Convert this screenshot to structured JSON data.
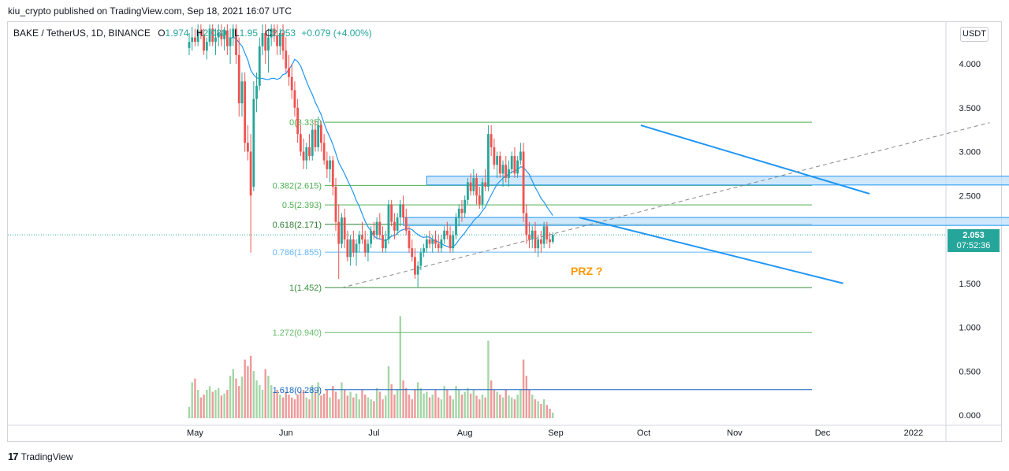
{
  "header": {
    "publisher_line": "kiu_crypto published on TradingView.com, Sep 18, 2021 16:07 UTC"
  },
  "legend": {
    "symbol": "BAKE / TetherUS, 1D, BINANCE",
    "o_label": "O",
    "o_value": "1.974",
    "h_label": "H",
    "h_value": "2.080",
    "l_label": "L",
    "l_value": "1.95",
    "c_label": "C",
    "c_value": "2.053",
    "change": "+0.079 (+4.00%)"
  },
  "currency_button": "USDT",
  "last_price": {
    "value": "2.053",
    "countdown": "07:52:36"
  },
  "annotation": {
    "text": "PRZ ?"
  },
  "footer": {
    "brand": "TradingView"
  },
  "colors": {
    "up": "#26a69a",
    "down": "#ef5350",
    "up_volume": "#a5d6a7",
    "down_volume": "#ef9a9a",
    "ma": "#2196f3",
    "trend": "#2196f3",
    "fib_green": "#388e3c",
    "fib_blue": "#64b5f6",
    "zone_fill": "#bbdefb",
    "prz": "#ff9800"
  },
  "chart_data": {
    "type": "candlestick",
    "title": "BAKE / TetherUS, 1D, BINANCE",
    "x_ticks": [
      "May",
      "Jun",
      "Jul",
      "Aug",
      "Sep",
      "Oct",
      "Nov",
      "Dec",
      "2022"
    ],
    "y_ticks": [
      "0.000",
      "0.500",
      "1.000",
      "1.500",
      "2.000",
      "2.500",
      "3.000",
      "3.500",
      "4.000"
    ],
    "y_range": [
      -0.1,
      4.45
    ],
    "fib_levels": [
      {
        "label": "0(3.335)",
        "value": 3.335,
        "color": "#4caf50"
      },
      {
        "label": "0.382(2.615)",
        "value": 2.615,
        "color": "#4caf50"
      },
      {
        "label": "0.5(2.393)",
        "value": 2.393,
        "color": "#4caf50"
      },
      {
        "label": "0.618(2.171)",
        "value": 2.171,
        "color": "#2e7d32"
      },
      {
        "label": "0.786(1.855)",
        "value": 1.855,
        "color": "#64b5f6"
      },
      {
        "label": "1(1.452)",
        "value": 1.452,
        "color": "#388e3c"
      },
      {
        "label": "1.272(0.940)",
        "value": 0.94,
        "color": "#66bb6a"
      },
      {
        "label": "1.618(0.289)",
        "value": 0.289,
        "color": "#1565c0"
      }
    ],
    "zones": [
      {
        "name": "zone-0382",
        "top": 2.72,
        "bottom": 2.62,
        "start_day": 81,
        "end_day": 284
      },
      {
        "name": "zone-0618",
        "top": 2.25,
        "bottom": 2.16,
        "start_day": 73,
        "end_day": 282
      }
    ],
    "trendlines": [
      {
        "name": "channel-upper",
        "from": {
          "day": 154,
          "price": 3.3
        },
        "to": {
          "day": 232,
          "price": 2.52
        },
        "style": "solid"
      },
      {
        "name": "channel-lower",
        "from": {
          "day": 133,
          "price": 2.25
        },
        "to": {
          "day": 223,
          "price": 1.5
        },
        "style": "solid"
      },
      {
        "name": "dashed-diagonal",
        "from": {
          "day": 52,
          "price": 1.45
        },
        "to": {
          "day": 273,
          "price": 3.33
        },
        "style": "dashed"
      }
    ],
    "current_price": 2.053,
    "x_start_date": "2021-04-29",
    "series_note": "daily OHLC and volume, estimated from the picture; volume in relative units",
    "candles": [
      [
        4.18,
        4.35,
        4.1,
        4.25,
        0.12
      ],
      [
        4.25,
        4.42,
        4.15,
        4.3,
        0.38
      ],
      [
        4.3,
        4.4,
        4.2,
        4.25,
        0.42
      ],
      [
        4.25,
        4.45,
        4.2,
        4.38,
        0.3
      ],
      [
        4.38,
        4.45,
        4.28,
        4.33,
        0.22
      ],
      [
        4.33,
        4.4,
        4.1,
        4.15,
        0.25
      ],
      [
        4.15,
        4.3,
        4.05,
        4.25,
        0.3
      ],
      [
        4.25,
        4.45,
        4.2,
        4.4,
        0.34
      ],
      [
        4.4,
        4.45,
        4.2,
        4.25,
        0.28
      ],
      [
        4.25,
        4.4,
        4.1,
        4.3,
        0.3
      ],
      [
        4.3,
        4.45,
        4.2,
        4.35,
        0.32
      ],
      [
        4.35,
        4.45,
        4.2,
        4.28,
        0.24
      ],
      [
        4.28,
        4.42,
        4.15,
        4.38,
        0.26
      ],
      [
        4.38,
        4.45,
        4.1,
        4.2,
        0.3
      ],
      [
        4.2,
        4.4,
        4.0,
        4.3,
        0.45
      ],
      [
        4.3,
        4.45,
        4.2,
        4.4,
        0.52
      ],
      [
        4.4,
        4.45,
        4.0,
        4.1,
        0.42
      ],
      [
        4.1,
        4.3,
        3.4,
        3.55,
        0.34
      ],
      [
        3.55,
        3.9,
        3.4,
        3.8,
        0.44
      ],
      [
        3.8,
        3.9,
        3.0,
        3.1,
        0.62
      ],
      [
        3.1,
        3.3,
        2.9,
        3.0,
        0.55
      ],
      [
        3.0,
        3.2,
        1.85,
        2.5,
        0.66
      ],
      [
        2.6,
        3.8,
        2.55,
        3.6,
        0.5
      ],
      [
        3.6,
        3.9,
        3.45,
        3.75,
        0.4
      ],
      [
        3.75,
        4.3,
        3.7,
        4.2,
        0.35
      ],
      [
        4.2,
        4.45,
        4.1,
        4.35,
        0.3
      ],
      [
        4.35,
        4.45,
        4.0,
        4.15,
        0.52
      ],
      [
        4.15,
        4.4,
        3.9,
        4.3,
        0.45
      ],
      [
        4.3,
        4.45,
        4.2,
        4.4,
        0.35
      ],
      [
        4.4,
        4.45,
        4.25,
        4.32,
        0.28
      ],
      [
        4.32,
        4.45,
        4.1,
        4.2,
        0.3
      ],
      [
        4.2,
        4.4,
        4.1,
        4.35,
        0.25
      ],
      [
        4.35,
        4.45,
        4.05,
        4.15,
        0.22
      ],
      [
        4.15,
        4.3,
        3.9,
        3.95,
        0.28
      ],
      [
        3.95,
        4.1,
        3.75,
        3.85,
        0.25
      ],
      [
        3.85,
        4.0,
        3.6,
        3.7,
        0.22
      ],
      [
        3.7,
        3.8,
        3.4,
        3.5,
        0.2
      ],
      [
        3.5,
        3.6,
        3.1,
        3.2,
        0.25
      ],
      [
        3.2,
        3.3,
        2.95,
        3.0,
        0.28
      ],
      [
        3.0,
        3.15,
        2.8,
        2.9,
        0.3
      ],
      [
        2.9,
        3.1,
        2.8,
        3.05,
        0.22
      ],
      [
        3.05,
        3.2,
        2.9,
        2.95,
        0.2
      ],
      [
        2.95,
        3.3,
        2.9,
        3.25,
        0.35
      ],
      [
        3.25,
        3.35,
        3.0,
        3.05,
        0.28
      ],
      [
        3.05,
        3.4,
        3.0,
        3.3,
        0.38
      ],
      [
        3.3,
        3.35,
        3.0,
        3.1,
        0.24
      ],
      [
        3.1,
        3.2,
        2.85,
        2.9,
        0.26
      ],
      [
        2.9,
        3.0,
        2.7,
        2.8,
        0.3
      ],
      [
        2.8,
        2.95,
        2.65,
        2.9,
        0.22
      ],
      [
        2.9,
        2.95,
        2.5,
        2.6,
        0.34
      ],
      [
        2.6,
        2.7,
        2.1,
        2.2,
        0.28
      ],
      [
        2.2,
        2.4,
        1.55,
        1.95,
        0.2
      ],
      [
        1.95,
        2.3,
        1.9,
        2.25,
        0.38
      ],
      [
        2.25,
        2.35,
        1.9,
        2.0,
        0.3
      ],
      [
        2.0,
        2.1,
        1.75,
        1.8,
        0.24
      ],
      [
        1.8,
        2.05,
        1.7,
        2.0,
        0.28
      ],
      [
        2.0,
        2.1,
        1.8,
        1.85,
        0.22
      ],
      [
        1.85,
        2.0,
        1.7,
        1.95,
        0.26
      ],
      [
        1.95,
        2.1,
        1.85,
        2.05,
        0.2
      ],
      [
        2.05,
        2.2,
        1.95,
        2.0,
        0.3
      ],
      [
        2.0,
        2.1,
        1.8,
        1.85,
        0.25
      ],
      [
        1.85,
        2.0,
        1.75,
        1.95,
        0.22
      ],
      [
        1.95,
        2.15,
        1.9,
        2.1,
        0.2
      ],
      [
        2.1,
        2.2,
        2.0,
        2.05,
        0.18
      ],
      [
        2.05,
        2.25,
        2.0,
        2.2,
        0.32
      ],
      [
        2.2,
        2.3,
        2.0,
        2.05,
        0.28
      ],
      [
        2.05,
        2.15,
        1.85,
        1.9,
        0.2
      ],
      [
        1.9,
        2.1,
        1.85,
        2.0,
        0.24
      ],
      [
        2.0,
        2.45,
        1.95,
        2.4,
        0.55
      ],
      [
        2.4,
        2.45,
        2.15,
        2.2,
        0.36
      ],
      [
        2.2,
        2.3,
        2.0,
        2.1,
        0.25
      ],
      [
        2.1,
        2.3,
        2.05,
        2.25,
        0.3
      ],
      [
        2.25,
        2.45,
        2.15,
        2.4,
        1.08
      ],
      [
        2.4,
        2.5,
        2.2,
        2.25,
        0.4
      ],
      [
        2.25,
        2.35,
        2.05,
        2.1,
        0.32
      ],
      [
        2.1,
        2.15,
        1.85,
        1.9,
        0.25
      ],
      [
        1.9,
        2.0,
        1.75,
        1.8,
        0.2
      ],
      [
        1.8,
        1.9,
        1.55,
        1.6,
        0.3
      ],
      [
        1.6,
        1.75,
        1.45,
        1.7,
        0.38
      ],
      [
        1.7,
        1.9,
        1.65,
        1.85,
        0.32
      ],
      [
        1.85,
        1.95,
        1.8,
        1.9,
        0.26
      ],
      [
        1.9,
        2.05,
        1.85,
        2.0,
        0.28
      ],
      [
        2.0,
        2.1,
        1.9,
        1.95,
        0.22
      ],
      [
        1.95,
        2.05,
        1.85,
        2.0,
        0.25
      ],
      [
        2.0,
        2.1,
        1.9,
        1.95,
        0.3
      ],
      [
        1.95,
        2.05,
        1.85,
        1.9,
        0.22
      ],
      [
        1.9,
        2.05,
        1.85,
        2.0,
        0.2
      ],
      [
        2.0,
        2.15,
        1.95,
        2.1,
        0.34
      ],
      [
        2.1,
        2.2,
        2.0,
        2.05,
        0.3
      ],
      [
        2.05,
        2.15,
        1.85,
        1.9,
        0.24
      ],
      [
        1.9,
        2.1,
        1.85,
        2.05,
        0.2
      ],
      [
        2.05,
        2.3,
        2.0,
        2.25,
        0.34
      ],
      [
        2.25,
        2.4,
        2.15,
        2.35,
        0.3
      ],
      [
        2.35,
        2.45,
        2.2,
        2.3,
        0.25
      ],
      [
        2.3,
        2.5,
        2.25,
        2.45,
        0.28
      ],
      [
        2.45,
        2.7,
        2.4,
        2.65,
        0.32
      ],
      [
        2.65,
        2.75,
        2.5,
        2.55,
        0.26
      ],
      [
        2.55,
        2.8,
        2.5,
        2.7,
        0.3
      ],
      [
        2.7,
        2.75,
        2.4,
        2.5,
        0.24
      ],
      [
        2.5,
        2.6,
        2.35,
        2.4,
        0.2
      ],
      [
        2.4,
        2.7,
        2.35,
        2.65,
        0.25
      ],
      [
        2.65,
        2.8,
        2.55,
        2.6,
        0.22
      ],
      [
        2.6,
        3.3,
        2.55,
        3.2,
        0.82
      ],
      [
        3.2,
        3.3,
        2.95,
        3.05,
        0.4
      ],
      [
        3.05,
        3.15,
        2.8,
        2.85,
        0.3
      ],
      [
        2.85,
        3.0,
        2.7,
        2.95,
        0.28
      ],
      [
        2.95,
        3.0,
        2.7,
        2.75,
        0.25
      ],
      [
        2.75,
        2.9,
        2.6,
        2.85,
        0.22
      ],
      [
        2.85,
        2.95,
        2.65,
        2.7,
        0.3
      ],
      [
        2.7,
        2.9,
        2.6,
        2.8,
        0.24
      ],
      [
        2.8,
        3.0,
        2.75,
        2.95,
        0.22
      ],
      [
        2.95,
        3.05,
        2.7,
        2.75,
        0.2
      ],
      [
        2.75,
        2.95,
        2.7,
        2.9,
        0.25
      ],
      [
        2.9,
        3.1,
        2.85,
        3.0,
        0.3
      ],
      [
        3.0,
        3.1,
        2.2,
        2.3,
        0.62
      ],
      [
        2.3,
        2.4,
        1.95,
        2.05,
        0.45
      ],
      [
        2.05,
        2.2,
        1.9,
        2.0,
        0.3
      ],
      [
        2.0,
        2.15,
        1.9,
        2.1,
        0.25
      ],
      [
        2.1,
        2.2,
        1.85,
        1.9,
        0.2
      ],
      [
        1.9,
        2.05,
        1.8,
        2.0,
        0.18
      ],
      [
        2.0,
        2.1,
        1.85,
        1.95,
        0.15
      ],
      [
        1.95,
        2.2,
        1.9,
        2.15,
        0.2
      ],
      [
        2.15,
        2.2,
        1.95,
        2.0,
        0.14
      ],
      [
        2.0,
        2.08,
        1.9,
        1.97,
        0.1
      ],
      [
        1.974,
        2.08,
        1.95,
        2.053,
        0.06
      ]
    ]
  }
}
